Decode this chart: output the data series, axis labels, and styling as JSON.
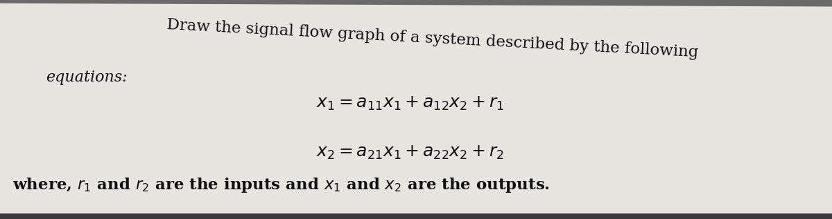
{
  "background_color": "#e8e4e0",
  "page_color": "#f0efec",
  "title_line1": "Draw the signal flow graph of a system described by the following",
  "label_equations": "equations:",
  "eq1": "$x_1 = a_{11}x_1 + a_{12}x_2 + r_1$",
  "eq2": "$x_2 = a_{21}x_1 + a_{22}x_2 + r_2$",
  "footer": "where, $r_1$ and $r_2$ are the inputs and $x_1$ and $x_2$ are the outputs.",
  "title_fontsize": 16.5,
  "eq_fontsize": 18,
  "footer_fontsize": 16.5,
  "label_fontsize": 16,
  "top_bar_color": "#6a6a6a",
  "bottom_bar_color": "#3a3a3a",
  "text_color": "#111111"
}
